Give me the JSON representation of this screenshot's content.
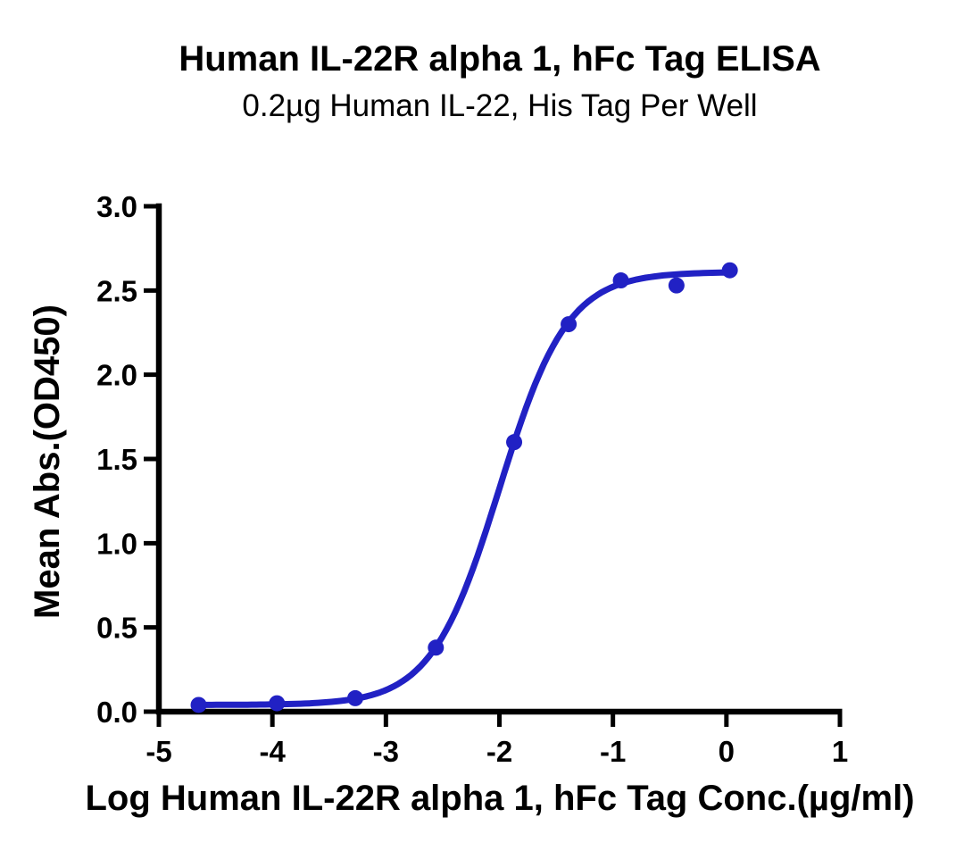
{
  "chart_data": {
    "type": "scatter",
    "title": "Human IL-22R alpha 1, hFc Tag ELISA",
    "subtitle": "0.2µg Human IL-22, His Tag Per Well",
    "xlabel": "Log Human IL-22R alpha 1, hFc Tag Conc.(µg/ml)",
    "ylabel": "Mean Abs.(OD450)",
    "xlim": [
      -5,
      1
    ],
    "ylim": [
      0,
      3
    ],
    "x_ticks": [
      -5,
      -4,
      -3,
      -2,
      -1,
      0,
      1
    ],
    "y_ticks": [
      0.0,
      0.5,
      1.0,
      1.5,
      2.0,
      2.5,
      3.0
    ],
    "y_tick_decimals": 1,
    "grid": false,
    "legend": "none",
    "series": [
      {
        "name": "Human IL-22R alpha 1, hFc Tag",
        "marker": "circle",
        "points": [
          {
            "x": -4.65,
            "y": 0.04
          },
          {
            "x": -3.96,
            "y": 0.05
          },
          {
            "x": -3.27,
            "y": 0.08
          },
          {
            "x": -2.56,
            "y": 0.38
          },
          {
            "x": -1.87,
            "y": 1.6
          },
          {
            "x": -1.39,
            "y": 2.3
          },
          {
            "x": -0.93,
            "y": 2.56
          },
          {
            "x": -0.44,
            "y": 2.53
          },
          {
            "x": 0.03,
            "y": 2.62
          }
        ]
      }
    ],
    "fit_curve": {
      "model": "4PL",
      "bottom": 0.04,
      "top": 2.61,
      "log_ec50": -2.0,
      "hill": 1.45,
      "x_range": [
        -4.65,
        0.03
      ]
    },
    "colors": {
      "series": "#2121C4",
      "axis": "#000000",
      "text": "#000000",
      "background": "#FFFFFF"
    }
  }
}
